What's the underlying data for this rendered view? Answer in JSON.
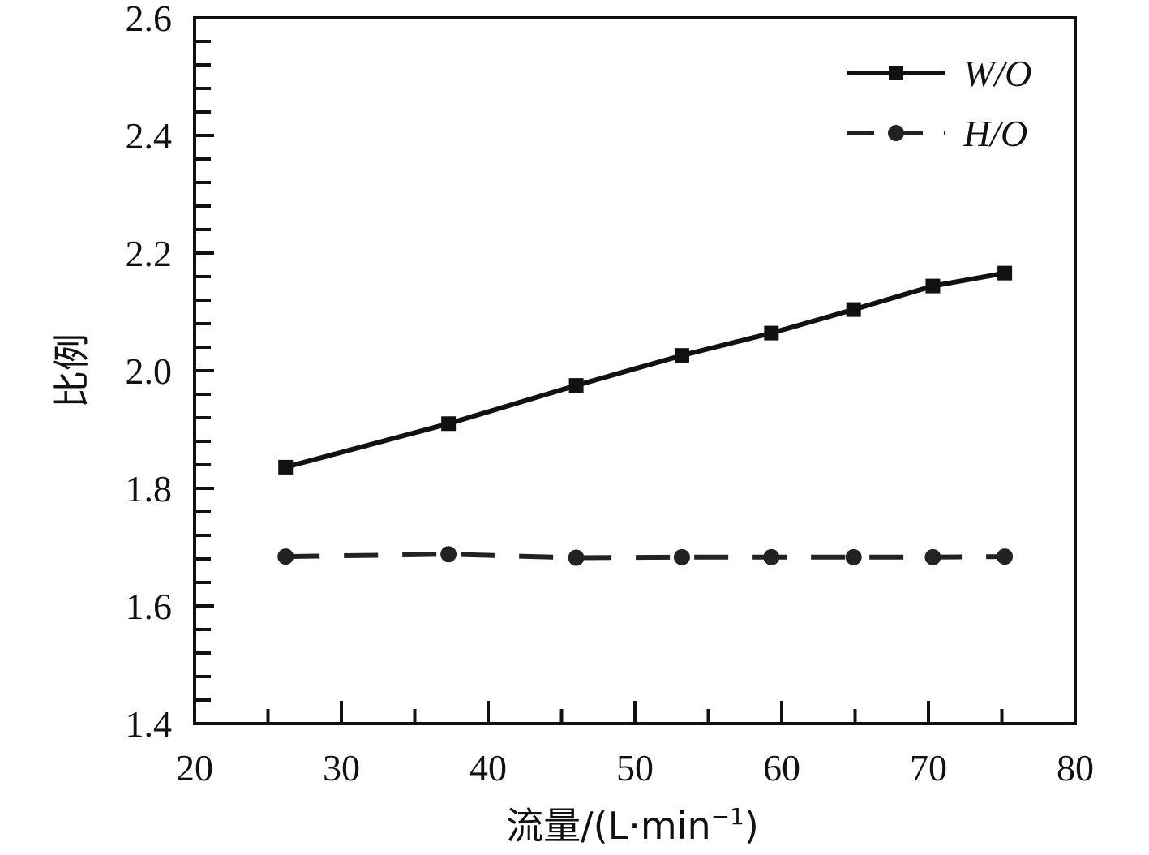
{
  "chart_data": {
    "type": "line",
    "xlabel": "流量/(L·min",
    "xlabel_sup": "−1",
    "xlabel_close": ")",
    "ylabel": "比例",
    "xlim": [
      20,
      80
    ],
    "ylim": [
      1.4,
      2.6
    ],
    "xticks": [
      "20",
      "30",
      "40",
      "50",
      "60",
      "70",
      "80"
    ],
    "yticks": [
      "1.4",
      "1.6",
      "1.8",
      "2.0",
      "2.2",
      "2.4",
      "2.6"
    ],
    "grid": false,
    "legend_position": "top-right",
    "series": [
      {
        "name": "W/O",
        "style": "solid",
        "marker": "square",
        "color": "#111111",
        "points": [
          {
            "x": 26.2,
            "y": 1.836
          },
          {
            "x": 37.3,
            "y": 1.91
          },
          {
            "x": 46.0,
            "y": 1.975
          },
          {
            "x": 53.2,
            "y": 2.026
          },
          {
            "x": 59.3,
            "y": 2.064
          },
          {
            "x": 64.9,
            "y": 2.104
          },
          {
            "x": 70.3,
            "y": 2.144
          },
          {
            "x": 75.2,
            "y": 2.166
          }
        ]
      },
      {
        "name": "H/O",
        "style": "dashed",
        "marker": "circle",
        "color": "#222222",
        "points": [
          {
            "x": 26.2,
            "y": 1.684
          },
          {
            "x": 37.3,
            "y": 1.688
          },
          {
            "x": 46.0,
            "y": 1.682
          },
          {
            "x": 53.2,
            "y": 1.683
          },
          {
            "x": 59.3,
            "y": 1.683
          },
          {
            "x": 64.9,
            "y": 1.683
          },
          {
            "x": 70.3,
            "y": 1.683
          },
          {
            "x": 75.2,
            "y": 1.684
          }
        ]
      }
    ]
  }
}
